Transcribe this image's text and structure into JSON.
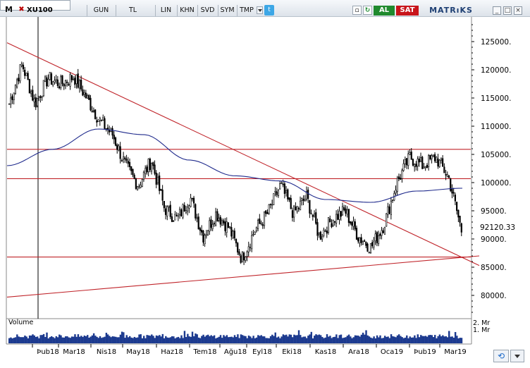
{
  "toolbar": {
    "logo": "M",
    "close_glyph": "✖",
    "symbol": "XU100",
    "period": "GUN",
    "currency": "TL",
    "scale": "LIN",
    "btn_khn": "KHN",
    "btn_svd": "SVD",
    "btn_sym": "SYM",
    "btn_tmp": "TMP",
    "twitter_glyph": "t",
    "btn_al": "AL",
    "btn_sat": "SAT",
    "brand": "MATRıKS",
    "win_min": "_",
    "win_max": "□",
    "win_close": "×"
  },
  "colors": {
    "al": "#1f8a2e",
    "sat": "#c8151b",
    "candle": "#000000",
    "ma": "#1f2a8c",
    "trend": "#c0242a",
    "volume": "#1c3a8f"
  },
  "chart_data": {
    "type": "candlestick",
    "ylim": [
      76000,
      129000
    ],
    "y_ticks": [
      "125000.",
      "120000.",
      "115000.",
      "110000.",
      "105000.",
      "100000.",
      "95000.",
      "90000.",
      "85000.",
      "80000."
    ],
    "last_price": "92120.33",
    "x_labels": [
      "Þub18",
      "Mar18",
      "Nis18",
      "May18",
      "Haz18",
      "Tem18",
      "Ağu18",
      "Eyl18",
      "Eki18",
      "Kas18",
      "Ara18",
      "Oca19",
      "Þub19",
      "Mar19"
    ],
    "horizontal_levels": [
      105900,
      100700,
      86800
    ],
    "trendlines": [
      {
        "from": [
          "Jan 2018",
          124800
        ],
        "to": [
          "Mar 2019",
          85300
        ]
      },
      {
        "from": [
          "Jan 2018",
          79700
        ],
        "to": [
          "Mar 2019",
          87000
        ]
      }
    ],
    "closes_key": [
      [
        "Jan 2018",
        114000
      ],
      [
        "Jan 2018",
        121000
      ],
      [
        "Feb 2018",
        114000
      ],
      [
        "Feb 2018",
        118500
      ],
      [
        "Mar 2018",
        117500
      ],
      [
        "Mar 2018",
        118800
      ],
      [
        "Apr 2018",
        115000
      ],
      [
        "Apr 2018",
        111000
      ],
      [
        "Apr 2018",
        108500
      ],
      [
        "May 2018",
        103000
      ],
      [
        "May 2018",
        99500
      ],
      [
        "May 2018",
        104000
      ],
      [
        "Jun 2018",
        95500
      ],
      [
        "Jun 2018",
        93500
      ],
      [
        "Jun 2018",
        97500
      ],
      [
        "Jul 2018",
        90500
      ],
      [
        "Jul 2018",
        94500
      ],
      [
        "Aug 2018",
        92000
      ],
      [
        "Aug 2018",
        86500
      ],
      [
        "Sep 2018",
        91500
      ],
      [
        "Sep 2018",
        94500
      ],
      [
        "Sep 2018",
        99500
      ],
      [
        "Oct 2018",
        94500
      ],
      [
        "Oct 2018",
        97500
      ],
      [
        "Nov 2018",
        90500
      ],
      [
        "Nov 2018",
        93500
      ],
      [
        "Dec 2018",
        95000
      ],
      [
        "Dec 2018",
        90500
      ],
      [
        "Dec 2018",
        88500
      ],
      [
        "Jan 2019",
        92500
      ],
      [
        "Jan 2019",
        100000
      ],
      [
        "Jan 2019",
        104500
      ],
      [
        "Feb 2019",
        103000
      ],
      [
        "Feb 2019",
        104500
      ],
      [
        "Mar 2019",
        101000
      ],
      [
        "Mar 2019",
        91500
      ]
    ],
    "moving_average_key": [
      [
        "Jan 2018",
        103000
      ],
      [
        "Feb 2018",
        105900
      ],
      [
        "Apr 2018",
        109500
      ],
      [
        "May 2018",
        108500
      ],
      [
        "Jul 2018",
        104000
      ],
      [
        "Sep 2018",
        101200
      ],
      [
        "Oct 2018",
        100300
      ],
      [
        "Dec 2018",
        97000
      ],
      [
        "Jan 2019",
        96500
      ],
      [
        "Feb 2019",
        98500
      ],
      [
        "Mar 2019",
        99000
      ]
    ],
    "volume": {
      "title": "Volume",
      "ticks": [
        "2. Mr",
        "1. Mr"
      ]
    }
  }
}
